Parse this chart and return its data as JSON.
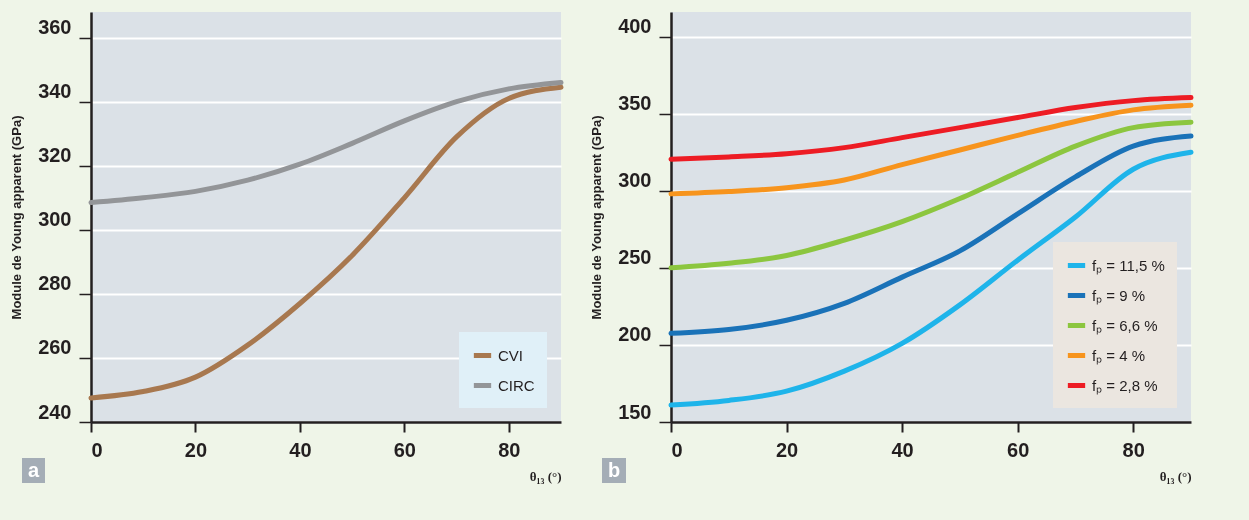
{
  "chart_data": [
    {
      "type": "line",
      "xlabel": "θ₁₃ (°)",
      "ylabel": "Module de Young apparent (GPa)",
      "annotations": [
        "a"
      ],
      "xlim": [
        0,
        90
      ],
      "xticks": [
        0,
        20,
        40,
        60,
        80
      ],
      "ylim": [
        240,
        368
      ],
      "yticks": [
        240,
        260,
        280,
        300,
        320,
        340,
        360
      ],
      "grid": "y",
      "legend": "bottom right",
      "x": [
        0,
        10,
        20,
        30,
        40,
        50,
        60,
        70,
        80,
        90
      ],
      "series": [
        {
          "name": "CVI",
          "color": "#a8784f",
          "values": [
            247.5,
            249.5,
            254,
            264,
            277,
            292,
            310,
            329,
            341,
            344.5
          ]
        },
        {
          "name": "CIRC",
          "color": "#939598",
          "values": [
            308.5,
            310,
            312,
            315.5,
            320.5,
            327,
            334,
            340,
            344,
            346
          ]
        }
      ]
    },
    {
      "type": "line",
      "xlabel": "θ₁₃ (°)",
      "ylabel": "Module de Young apparent (GPa)",
      "annotations": [
        "b"
      ],
      "xlim": [
        0,
        90
      ],
      "xticks": [
        0,
        20,
        40,
        60,
        80
      ],
      "ylim": [
        150,
        416
      ],
      "yticks": [
        150,
        200,
        250,
        300,
        350,
        400
      ],
      "grid": "y",
      "legend": "bottom right",
      "x": [
        0,
        10,
        20,
        30,
        40,
        50,
        60,
        70,
        80,
        90
      ],
      "series": [
        {
          "name": "fₚ = 11,5 %",
          "color": "#1eb4ea",
          "values": [
            161,
            164,
            170,
            183,
            201,
            226,
            255,
            283,
            314,
            325
          ]
        },
        {
          "name": "fₚ = 9 %",
          "color": "#1a72b8",
          "values": [
            207.5,
            210,
            216,
            227,
            244,
            261,
            285,
            309,
            329,
            335.5
          ]
        },
        {
          "name": "fₚ = 6,6 %",
          "color": "#8cc63f",
          "values": [
            250,
            253,
            258,
            268,
            280,
            295,
            312,
            329,
            341,
            344.5
          ]
        },
        {
          "name": "fₚ = 4 %",
          "color": "#f7941d",
          "values": [
            298,
            299.5,
            302,
            307,
            317,
            326.5,
            336,
            345,
            352.5,
            355.5
          ]
        },
        {
          "name": "fₚ = 2,8 %",
          "color": "#ed1c24",
          "values": [
            320.5,
            322,
            324,
            328,
            334.5,
            341,
            347.5,
            354,
            358.5,
            360.5
          ]
        }
      ]
    }
  ]
}
